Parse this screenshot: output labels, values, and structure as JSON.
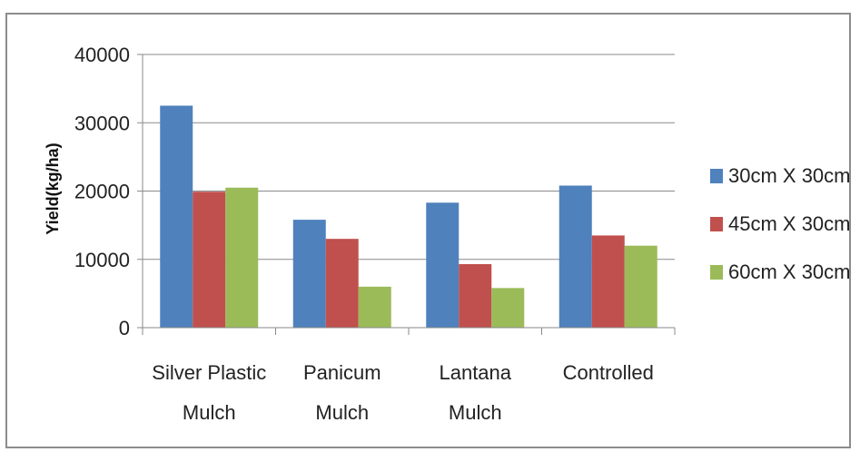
{
  "chart_data": {
    "type": "bar",
    "categories": [
      [
        "Silver Plastic",
        "Mulch"
      ],
      [
        "Panicum",
        "Mulch"
      ],
      [
        "Lantana",
        "Mulch"
      ],
      [
        "Controlled"
      ]
    ],
    "series": [
      {
        "name": "30cm X 30cm",
        "color": "#4F81BD",
        "values": [
          32500,
          15800,
          18300,
          20800
        ]
      },
      {
        "name": "45cm X 30cm",
        "color": "#C0504D",
        "values": [
          19900,
          13000,
          9300,
          13500
        ]
      },
      {
        "name": "60cm X 30cm",
        "color": "#9BBB59",
        "values": [
          20500,
          6000,
          5800,
          12000
        ]
      }
    ],
    "ylabel": "Yield(kg/ha)",
    "xlabel": "",
    "title": "",
    "ylim": [
      0,
      40000
    ],
    "yticks": [
      0,
      10000,
      20000,
      30000,
      40000
    ],
    "grid": true,
    "legend": "right"
  }
}
